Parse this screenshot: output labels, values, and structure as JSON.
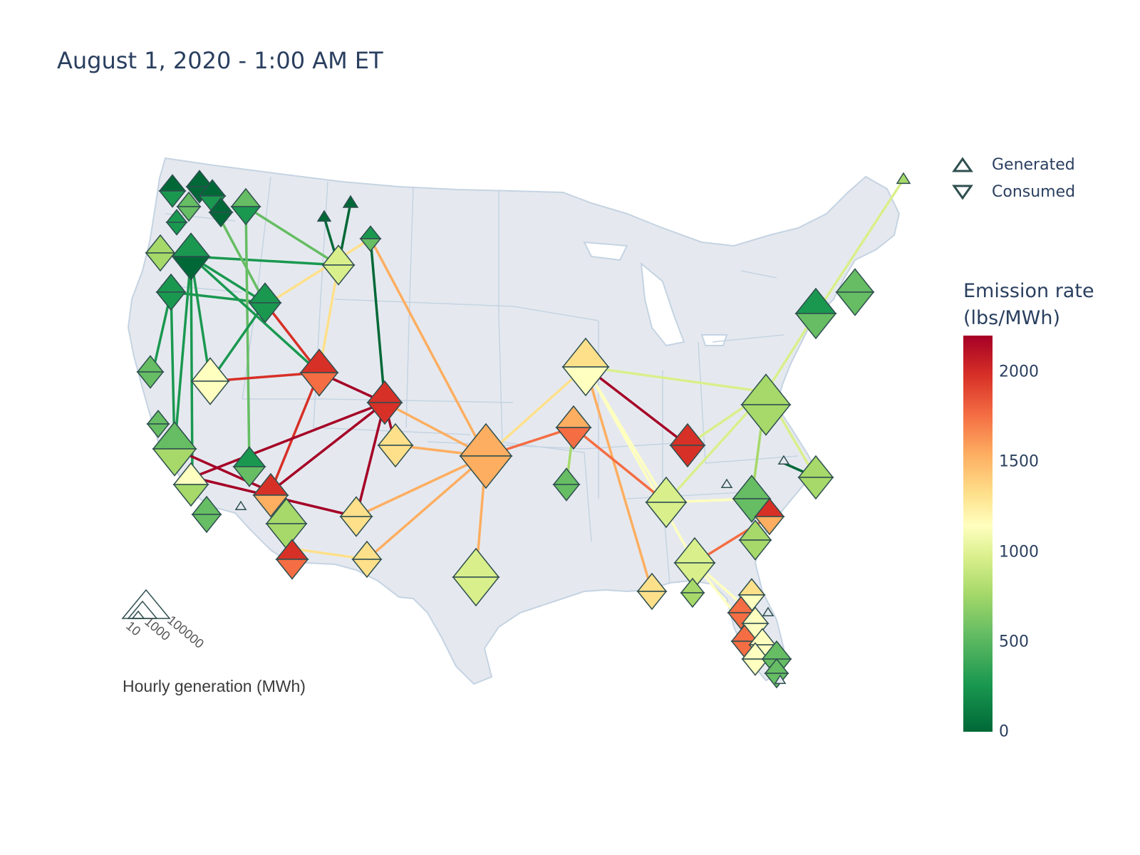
{
  "title": "August 1, 2020 - 1:00 AM ET",
  "legend": {
    "items": [
      {
        "label": "Generated",
        "icon": "triangle-up-icon"
      },
      {
        "label": "Consumed",
        "icon": "triangle-down-icon"
      }
    ]
  },
  "colorbar": {
    "title_line1": "Emission rate",
    "title_line2": "(lbs/MWh)",
    "ticks": [
      "2000",
      "1500",
      "1000",
      "500",
      "0"
    ],
    "tick_values": [
      2000,
      1500,
      1000,
      500,
      0
    ],
    "range": [
      0,
      2200
    ],
    "colors": [
      "#006837",
      "#1a9850",
      "#66bd63",
      "#a6d96a",
      "#d9ef8b",
      "#ffffbf",
      "#fee08b",
      "#fdae61",
      "#f46d43",
      "#d73027",
      "#a50026"
    ]
  },
  "size_legend": {
    "label": "Hourly generation (MWh)",
    "ticks": [
      "10",
      "1000",
      "100000"
    ]
  },
  "map_colors": {
    "land": "#e5e9ef",
    "border": "#c5d3e2",
    "marker_outline": "#2f4f4f"
  }
}
